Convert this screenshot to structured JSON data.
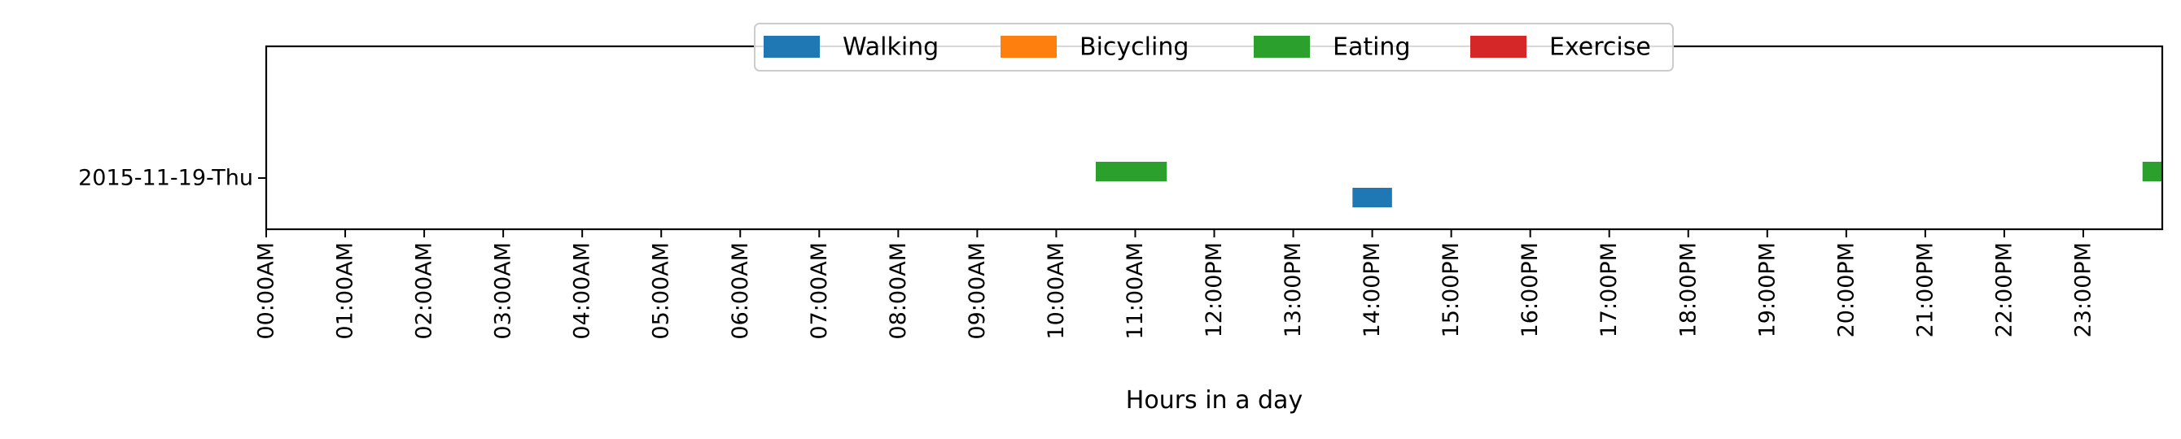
{
  "chart_data": {
    "type": "timeline",
    "title": "",
    "xlabel": "Hours in a day",
    "ylabel": "",
    "xlim": [
      0,
      24
    ],
    "grid": false,
    "legend_placement": "top-center",
    "x_tick_labels": [
      "00:00AM",
      "01:00AM",
      "02:00AM",
      "03:00AM",
      "04:00AM",
      "05:00AM",
      "06:00AM",
      "07:00AM",
      "08:00AM",
      "09:00AM",
      "10:00AM",
      "11:00AM",
      "12:00PM",
      "13:00PM",
      "14:00PM",
      "15:00PM",
      "16:00PM",
      "17:00PM",
      "18:00PM",
      "19:00PM",
      "20:00PM",
      "21:00PM",
      "22:00PM",
      "23:00PM"
    ],
    "categories": [
      "2015-11-19-Thu"
    ],
    "series": [
      {
        "name": "Walking",
        "color": "#1f77b4",
        "segments": [
          {
            "day": "2015-11-19-Thu",
            "start": 13.75,
            "end": 14.25
          }
        ]
      },
      {
        "name": "Bicycling",
        "color": "#ff7f0e",
        "segments": []
      },
      {
        "name": "Eating",
        "color": "#2ca02c",
        "segments": [
          {
            "day": "2015-11-19-Thu",
            "start": 10.5,
            "end": 11.4
          },
          {
            "day": "2015-11-19-Thu",
            "start": 23.75,
            "end": 24.0
          }
        ]
      },
      {
        "name": "Exercise",
        "color": "#d62728",
        "segments": []
      }
    ]
  }
}
